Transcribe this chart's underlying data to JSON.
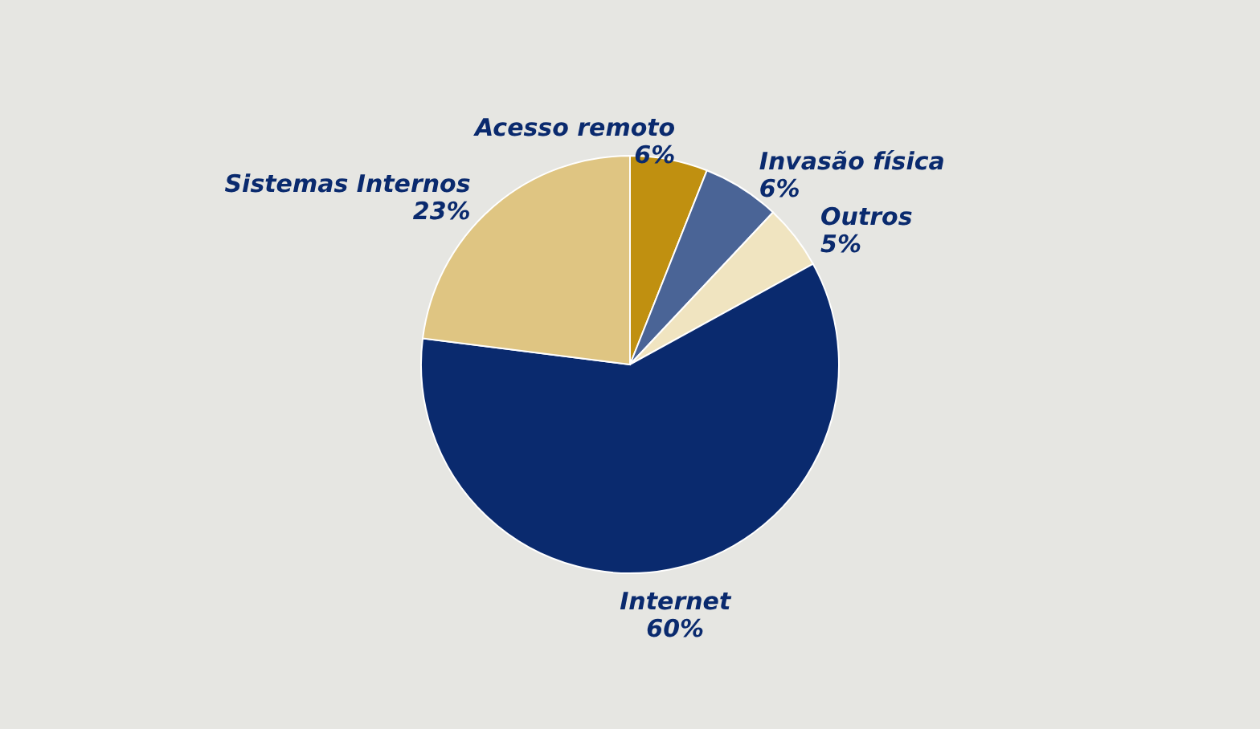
{
  "chart_data": {
    "type": "pie",
    "categories": [
      "Acesso remoto",
      "Invasão física",
      "Outros",
      "Internet",
      "Sistemas Internos"
    ],
    "values": [
      6,
      6,
      5,
      60,
      23
    ],
    "value_labels": [
      "6%",
      "6%",
      "5%",
      "60%",
      "23%"
    ],
    "colors": [
      "#c09010",
      "#4a6496",
      "#f0e4c0",
      "#0a2a6e",
      "#dfc582"
    ],
    "legend": false
  }
}
